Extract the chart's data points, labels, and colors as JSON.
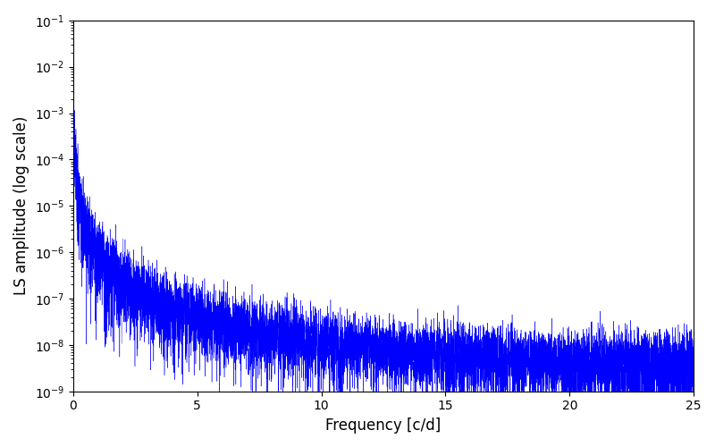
{
  "title": "",
  "xlabel": "Frequency [c/d]",
  "ylabel": "LS amplitude (log scale)",
  "line_color": "blue",
  "xmin": 0,
  "xmax": 25,
  "ymin": 1e-09,
  "ymax": 0.1,
  "figsize": [
    8.0,
    5.0
  ],
  "dpi": 100,
  "background_color": "#ffffff"
}
